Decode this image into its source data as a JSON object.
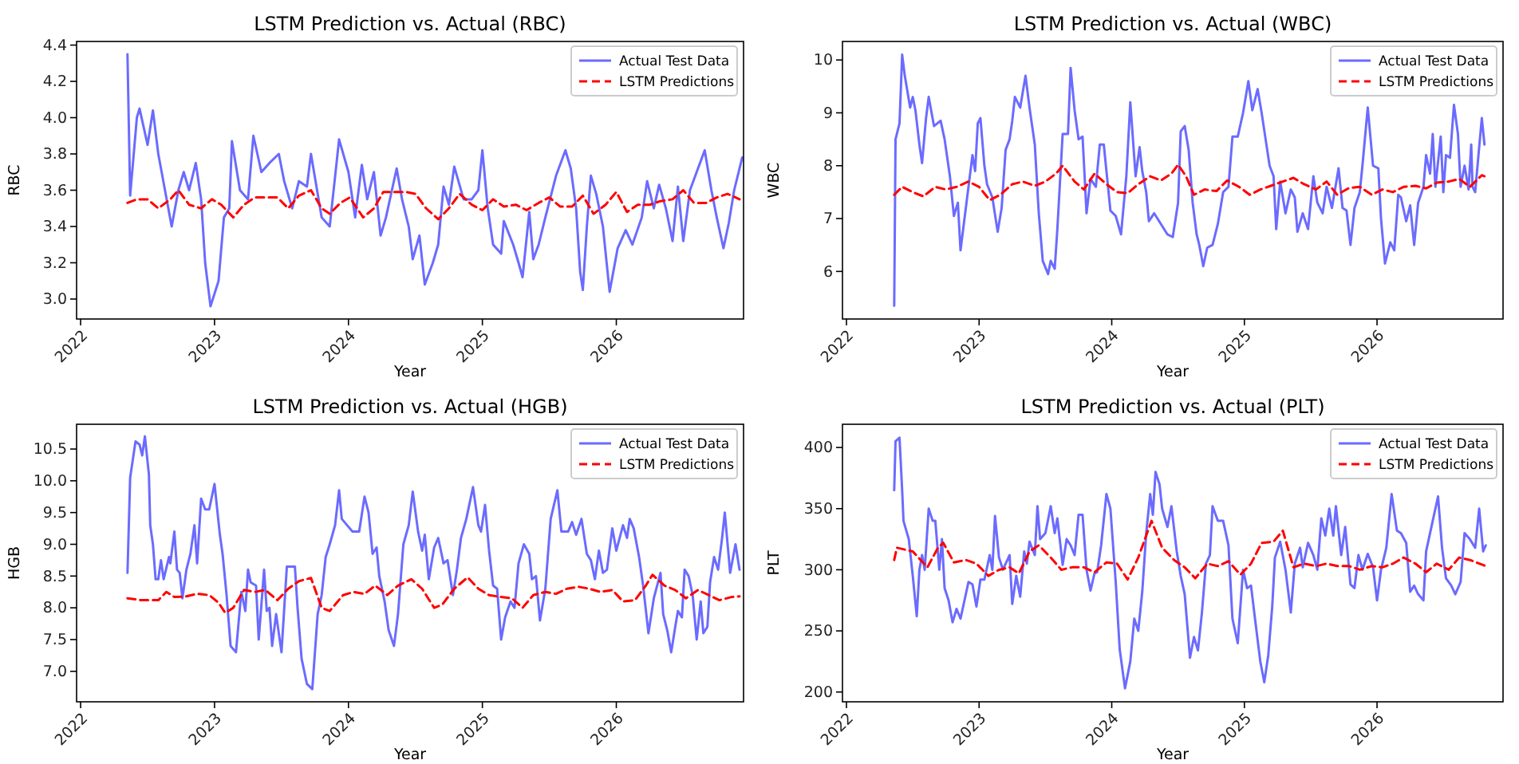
{
  "chart_data": [
    {
      "type": "line",
      "title": "LSTM Prediction vs. Actual (RBC)",
      "xlabel": "Year",
      "ylabel": "RBC",
      "legend": "top right",
      "xlim": [
        2021.97,
        2026.95
      ],
      "xticks": [
        2022,
        2023,
        2024,
        2025,
        2026
      ],
      "ylim": [
        2.89,
        4.42
      ],
      "yticks": [
        {
          "value": 3,
          "label": "3.0"
        },
        {
          "value": 3.2,
          "label": "3.2"
        },
        {
          "value": 3.4,
          "label": "3.4"
        },
        {
          "value": 3.6,
          "label": "3.6"
        },
        {
          "value": 3.8,
          "label": "3.8"
        },
        {
          "value": 4,
          "label": "4.0"
        },
        {
          "value": 4.2,
          "label": "4.2"
        },
        {
          "value": 4.4,
          "label": "4.4"
        }
      ],
      "series": [
        {
          "name": "Actual Test Data",
          "color": "#6b6bff",
          "line_style": "solid",
          "x": [
            2022.35,
            2022.37,
            2022.42,
            2022.44,
            2022.5,
            2022.54,
            2022.58,
            2022.63,
            2022.68,
            2022.73,
            2022.77,
            2022.81,
            2022.86,
            2022.9,
            2022.93,
            2022.97,
            2023.03,
            2023.07,
            2023.11,
            2023.13,
            2023.19,
            2023.25,
            2023.29,
            2023.35,
            2023.41,
            2023.48,
            2023.52,
            2023.58,
            2023.63,
            2023.69,
            2023.72,
            2023.8,
            2023.86,
            2023.93,
            2024,
            2024.05,
            2024.1,
            2024.14,
            2024.19,
            2024.24,
            2024.28,
            2024.36,
            2024.4,
            2024.45,
            2024.48,
            2024.53,
            2024.57,
            2024.63,
            2024.67,
            2024.71,
            2024.75,
            2024.79,
            2024.86,
            2024.92,
            2024.97,
            2025,
            2025.04,
            2025.08,
            2025.14,
            2025.16,
            2025.23,
            2025.27,
            2025.3,
            2025.35,
            2025.38,
            2025.42,
            2025.47,
            2025.55,
            2025.62,
            2025.66,
            2025.7,
            2025.73,
            2025.75,
            2025.78,
            2025.81,
            2025.85,
            2025.9,
            2025.95,
            2026.01,
            2026.07,
            2026.12,
            2026.19,
            2026.23,
            2026.28,
            2026.32,
            2026.37,
            2026.42,
            2026.46,
            2026.5,
            2026.55,
            2026.6,
            2026.66,
            2026.71,
            2026.75,
            2026.8,
            2026.84,
            2026.88,
            2026.94
          ],
          "values": [
            4.35,
            3.57,
            4.0,
            4.05,
            3.85,
            4.04,
            3.8,
            3.6,
            3.4,
            3.6,
            3.7,
            3.6,
            3.75,
            3.55,
            3.2,
            2.96,
            3.1,
            3.45,
            3.5,
            3.87,
            3.6,
            3.55,
            3.9,
            3.7,
            3.75,
            3.8,
            3.65,
            3.5,
            3.65,
            3.62,
            3.8,
            3.45,
            3.4,
            3.88,
            3.7,
            3.45,
            3.74,
            3.55,
            3.7,
            3.35,
            3.45,
            3.72,
            3.55,
            3.4,
            3.22,
            3.35,
            3.08,
            3.2,
            3.3,
            3.62,
            3.52,
            3.73,
            3.55,
            3.55,
            3.6,
            3.82,
            3.5,
            3.3,
            3.25,
            3.43,
            3.3,
            3.2,
            3.12,
            3.48,
            3.22,
            3.3,
            3.45,
            3.68,
            3.82,
            3.72,
            3.5,
            3.15,
            3.05,
            3.4,
            3.68,
            3.58,
            3.4,
            3.04,
            3.28,
            3.38,
            3.3,
            3.45,
            3.65,
            3.5,
            3.63,
            3.5,
            3.32,
            3.62,
            3.32,
            3.6,
            3.7,
            3.82,
            3.6,
            3.45,
            3.28,
            3.42,
            3.6,
            3.78
          ]
        },
        {
          "name": "LSTM Predictions",
          "color": "#ff0000",
          "line_style": "dashed",
          "x": [
            2022.35,
            2022.42,
            2022.5,
            2022.58,
            2022.67,
            2022.73,
            2022.81,
            2022.9,
            2022.98,
            2023.05,
            2023.14,
            2023.22,
            2023.3,
            2023.38,
            2023.47,
            2023.55,
            2023.63,
            2023.72,
            2023.8,
            2023.86,
            2023.94,
            2024.01,
            2024.11,
            2024.19,
            2024.26,
            2024.34,
            2024.43,
            2024.5,
            2024.58,
            2024.67,
            2024.75,
            2024.83,
            2024.92,
            2025,
            2025.08,
            2025.16,
            2025.25,
            2025.33,
            2025.42,
            2025.5,
            2025.58,
            2025.67,
            2025.75,
            2025.83,
            2025.92,
            2026,
            2026.08,
            2026.16,
            2026.25,
            2026.33,
            2026.42,
            2026.5,
            2026.58,
            2026.67,
            2026.75,
            2026.83,
            2026.92
          ],
          "values": [
            3.53,
            3.55,
            3.55,
            3.5,
            3.55,
            3.6,
            3.52,
            3.5,
            3.55,
            3.52,
            3.45,
            3.52,
            3.56,
            3.56,
            3.56,
            3.5,
            3.57,
            3.6,
            3.5,
            3.47,
            3.53,
            3.56,
            3.45,
            3.5,
            3.59,
            3.59,
            3.59,
            3.58,
            3.5,
            3.44,
            3.5,
            3.58,
            3.52,
            3.49,
            3.55,
            3.51,
            3.52,
            3.49,
            3.53,
            3.56,
            3.51,
            3.51,
            3.57,
            3.47,
            3.52,
            3.59,
            3.48,
            3.52,
            3.52,
            3.54,
            3.55,
            3.6,
            3.53,
            3.53,
            3.56,
            3.58,
            3.55
          ]
        }
      ]
    },
    {
      "type": "line",
      "title": "LSTM Prediction vs. Actual (WBC)",
      "xlabel": "Year",
      "ylabel": "WBC",
      "legend": "top right",
      "xlim": [
        2021.97,
        2026.95
      ],
      "xticks": [
        2022,
        2023,
        2024,
        2025,
        2026
      ],
      "ylim": [
        5.1,
        10.35
      ],
      "yticks": [
        6,
        7,
        8,
        9,
        10
      ],
      "series": [
        {
          "name": "Actual Test Data",
          "color": "#6b6bff",
          "line_style": "solid",
          "x": [
            2022.36,
            2022.37,
            2022.4,
            2022.42,
            2022.44,
            2022.48,
            2022.5,
            2022.52,
            2022.55,
            2022.57,
            2022.6,
            2022.62,
            2022.66,
            2022.71,
            2022.74,
            2022.78,
            2022.81,
            2022.84,
            2022.86,
            2022.9,
            2022.95,
            2022.97,
            2022.99,
            2023.01,
            2023.04,
            2023.06,
            2023.1,
            2023.14,
            2023.17,
            2023.2,
            2023.23,
            2023.25,
            2023.27,
            2023.31,
            2023.35,
            2023.38,
            2023.42,
            2023.45,
            2023.48,
            2023.52,
            2023.54,
            2023.57,
            2023.59,
            2023.63,
            2023.67,
            2023.69,
            2023.72,
            2023.75,
            2023.78,
            2023.81,
            2023.84,
            2023.88,
            2023.91,
            2023.94,
            2023.99,
            2024.03,
            2024.07,
            2024.11,
            2024.14,
            2024.18,
            2024.21,
            2024.23,
            2024.26,
            2024.28,
            2024.32,
            2024.37,
            2024.42,
            2024.46,
            2024.5,
            2024.52,
            2024.55,
            2024.58,
            2024.61,
            2024.64,
            2024.66,
            2024.69,
            2024.72,
            2024.76,
            2024.8,
            2024.84,
            2024.88,
            2024.91,
            2024.95,
            2024.99,
            2025.03,
            2025.06,
            2025.1,
            2025.13,
            2025.16,
            2025.19,
            2025.22,
            2025.24,
            2025.27,
            2025.31,
            2025.35,
            2025.38,
            2025.4,
            2025.44,
            2025.48,
            2025.52,
            2025.55,
            2025.59,
            2025.62,
            2025.66,
            2025.71,
            2025.74,
            2025.77,
            2025.8,
            2025.83,
            2025.87,
            2025.89,
            2025.93,
            2025.97,
            2026.01,
            2026.03,
            2026.06,
            2026.1,
            2026.13,
            2026.16,
            2026.18,
            2026.22,
            2026.25,
            2026.28,
            2026.31,
            2026.35,
            2026.37,
            2026.4,
            2026.42,
            2026.44,
            2026.48,
            2026.5,
            2026.52,
            2026.55,
            2026.58,
            2026.61,
            2026.63,
            2026.66,
            2026.69,
            2026.71,
            2026.72,
            2026.74,
            2026.77,
            2026.79,
            2026.81
          ],
          "values": [
            5.35,
            8.5,
            8.8,
            10.1,
            9.7,
            9.1,
            9.3,
            9.05,
            8.4,
            8.05,
            8.9,
            9.3,
            8.75,
            8.85,
            8.5,
            7.8,
            7.05,
            7.3,
            6.4,
            7.2,
            8.2,
            7.9,
            8.8,
            8.9,
            8.0,
            7.65,
            7.4,
            6.75,
            7.2,
            8.3,
            8.5,
            8.85,
            9.3,
            9.1,
            9.7,
            9.1,
            8.4,
            7.1,
            6.2,
            5.95,
            6.2,
            6.05,
            6.8,
            8.6,
            8.6,
            9.85,
            9.05,
            8.5,
            8.55,
            7.1,
            7.75,
            7.6,
            8.4,
            8.4,
            7.15,
            7.05,
            6.7,
            7.8,
            9.2,
            7.8,
            8.35,
            7.9,
            7.5,
            6.95,
            7.1,
            6.9,
            6.7,
            6.65,
            7.3,
            8.65,
            8.75,
            8.3,
            7.3,
            6.7,
            6.5,
            6.1,
            6.45,
            6.5,
            6.9,
            7.5,
            7.6,
            8.55,
            8.55,
            9.0,
            9.6,
            9.05,
            9.45,
            9.0,
            8.5,
            8.0,
            7.8,
            6.8,
            7.7,
            7.1,
            7.55,
            7.4,
            6.75,
            7.1,
            6.8,
            7.8,
            7.3,
            7.1,
            7.6,
            7.2,
            7.95,
            7.2,
            7.15,
            6.5,
            7.2,
            7.5,
            8.0,
            9.1,
            8.0,
            7.95,
            7.0,
            6.15,
            6.55,
            6.4,
            7.45,
            7.4,
            6.95,
            7.25,
            6.5,
            7.3,
            7.6,
            8.2,
            7.85,
            8.6,
            7.6,
            8.55,
            7.5,
            8.2,
            8.15,
            9.15,
            8.6,
            7.6,
            8.0,
            7.55,
            8.4,
            7.6,
            7.5,
            8.35,
            8.9,
            8.4
          ]
        },
        {
          "name": "LSTM Predictions",
          "color": "#ff0000",
          "line_style": "dashed",
          "x": [
            2022.36,
            2022.42,
            2022.5,
            2022.58,
            2022.67,
            2022.75,
            2022.83,
            2022.92,
            2023,
            2023.08,
            2023.16,
            2023.25,
            2023.33,
            2023.42,
            2023.5,
            2023.58,
            2023.63,
            2023.72,
            2023.79,
            2023.87,
            2023.96,
            2024.04,
            2024.12,
            2024.2,
            2024.29,
            2024.37,
            2024.45,
            2024.5,
            2024.56,
            2024.62,
            2024.7,
            2024.79,
            2024.87,
            2024.96,
            2025.04,
            2025.12,
            2025.2,
            2025.29,
            2025.37,
            2025.45,
            2025.54,
            2025.62,
            2025.7,
            2025.79,
            2025.87,
            2025.96,
            2026.04,
            2026.12,
            2026.2,
            2026.29,
            2026.37,
            2026.45,
            2026.54,
            2026.62,
            2026.7,
            2026.79,
            2026.81
          ],
          "values": [
            7.45,
            7.6,
            7.5,
            7.42,
            7.6,
            7.55,
            7.6,
            7.7,
            7.6,
            7.35,
            7.45,
            7.65,
            7.7,
            7.62,
            7.7,
            7.85,
            8.0,
            7.7,
            7.55,
            7.85,
            7.65,
            7.5,
            7.48,
            7.65,
            7.8,
            7.72,
            7.85,
            8.02,
            7.8,
            7.45,
            7.55,
            7.52,
            7.72,
            7.6,
            7.45,
            7.55,
            7.62,
            7.7,
            7.77,
            7.65,
            7.55,
            7.7,
            7.45,
            7.58,
            7.6,
            7.45,
            7.55,
            7.5,
            7.6,
            7.62,
            7.57,
            7.68,
            7.7,
            7.75,
            7.6,
            7.82,
            7.8
          ]
        }
      ]
    },
    {
      "type": "line",
      "title": "LSTM Prediction vs. Actual (HGB)",
      "xlabel": "Year",
      "ylabel": "HGB",
      "legend": "top right",
      "xlim": [
        2021.97,
        2026.95
      ],
      "xticks": [
        2022,
        2023,
        2024,
        2025,
        2026
      ],
      "ylim": [
        6.52,
        10.89
      ],
      "yticks": [
        {
          "value": 7,
          "label": "7.0"
        },
        {
          "value": 7.5,
          "label": "7.5"
        },
        {
          "value": 8,
          "label": "8.0"
        },
        {
          "value": 8.5,
          "label": "8.5"
        },
        {
          "value": 9,
          "label": "9.0"
        },
        {
          "value": 9.5,
          "label": "9.5"
        },
        {
          "value": 10,
          "label": "10.0"
        },
        {
          "value": 10.5,
          "label": "10.5"
        }
      ],
      "series": [
        {
          "name": "Actual Test Data",
          "color": "#6b6bff",
          "line_style": "solid",
          "x": [
            2022.35,
            2022.37,
            2022.41,
            2022.44,
            2022.46,
            2022.48,
            2022.51,
            2022.52,
            2022.54,
            2022.56,
            2022.58,
            2022.6,
            2022.62,
            2022.66,
            2022.67,
            2022.7,
            2022.72,
            2022.74,
            2022.76,
            2022.79,
            2022.82,
            2022.85,
            2022.87,
            2022.9,
            2022.93,
            2022.96,
            2023,
            2023.04,
            2023.06,
            2023.09,
            2023.12,
            2023.16,
            2023.2,
            2023.23,
            2023.25,
            2023.27,
            2023.31,
            2023.33,
            2023.37,
            2023.39,
            2023.41,
            2023.43,
            2023.46,
            2023.5,
            2023.54,
            2023.6,
            2023.62,
            2023.65,
            2023.69,
            2023.73,
            2023.77,
            2023.8,
            2023.83,
            2023.86,
            2023.9,
            2023.93,
            2023.95,
            2023.99,
            2024.03,
            2024.08,
            2024.12,
            2024.15,
            2024.18,
            2024.21,
            2024.23,
            2024.27,
            2024.3,
            2024.34,
            2024.37,
            2024.41,
            2024.45,
            2024.48,
            2024.52,
            2024.55,
            2024.57,
            2024.6,
            2024.64,
            2024.67,
            2024.71,
            2024.74,
            2024.78,
            2024.81,
            2024.84,
            2024.88,
            2024.93,
            2024.97,
            2024.99,
            2025.02,
            2025.05,
            2025.08,
            2025.11,
            2025.14,
            2025.17,
            2025.21,
            2025.24,
            2025.27,
            2025.31,
            2025.35,
            2025.37,
            2025.4,
            2025.43,
            2025.47,
            2025.51,
            2025.56,
            2025.59,
            2025.64,
            2025.67,
            2025.7,
            2025.74,
            2025.78,
            2025.81,
            2025.84,
            2025.87,
            2025.9,
            2025.93,
            2025.97,
            2026,
            2026.05,
            2026.08,
            2026.1,
            2026.13,
            2026.17,
            2026.2,
            2026.24,
            2026.28,
            2026.33,
            2026.35,
            2026.38,
            2026.41,
            2026.44,
            2026.46,
            2026.49,
            2026.51,
            2026.54,
            2026.57,
            2026.6,
            2026.63,
            2026.65,
            2026.68,
            2026.7,
            2026.73,
            2026.76,
            2026.79,
            2026.81,
            2026.85,
            2026.89,
            2026.92
          ],
          "values": [
            8.55,
            10.05,
            10.62,
            10.57,
            10.4,
            10.7,
            10.1,
            9.3,
            9.0,
            8.45,
            8.45,
            8.75,
            8.45,
            8.8,
            8.7,
            9.2,
            8.6,
            8.55,
            8.15,
            8.6,
            8.85,
            9.3,
            8.7,
            9.72,
            9.55,
            9.55,
            9.95,
            9.15,
            8.85,
            8.2,
            7.4,
            7.3,
            8.25,
            7.95,
            8.6,
            8.4,
            8.35,
            7.5,
            8.6,
            7.95,
            8.0,
            7.4,
            7.9,
            7.3,
            8.65,
            8.65,
            8.0,
            7.2,
            6.8,
            6.72,
            7.9,
            8.2,
            8.8,
            9.0,
            9.3,
            9.85,
            9.4,
            9.3,
            9.2,
            9.2,
            9.75,
            9.5,
            8.85,
            8.95,
            8.5,
            8.1,
            7.65,
            7.4,
            7.9,
            9.0,
            9.3,
            9.83,
            9.2,
            8.9,
            9.15,
            8.45,
            8.95,
            9.1,
            8.7,
            8.75,
            8.2,
            8.6,
            9.1,
            9.4,
            9.9,
            9.3,
            9.2,
            9.62,
            8.9,
            8.35,
            8.3,
            7.5,
            7.85,
            8.1,
            8.0,
            8.7,
            9.0,
            8.85,
            8.45,
            8.5,
            7.8,
            8.3,
            9.4,
            9.85,
            9.2,
            9.2,
            9.35,
            9.15,
            9.4,
            8.85,
            8.75,
            8.45,
            8.9,
            8.55,
            8.6,
            9.25,
            8.9,
            9.3,
            9.1,
            9.4,
            9.25,
            8.8,
            8.35,
            7.6,
            8.15,
            8.55,
            7.9,
            7.65,
            7.3,
            7.7,
            7.95,
            7.85,
            8.6,
            8.5,
            8.2,
            7.5,
            8.1,
            7.6,
            7.7,
            8.4,
            8.8,
            8.6,
            9.1,
            9.5,
            8.55,
            9.0,
            8.6
          ]
        },
        {
          "name": "LSTM Predictions",
          "color": "#ff0000",
          "line_style": "dashed",
          "x": [
            2022.35,
            2022.45,
            2022.58,
            2022.64,
            2022.7,
            2022.79,
            2022.87,
            2022.96,
            2023.03,
            2023.08,
            2023.14,
            2023.22,
            2023.3,
            2023.38,
            2023.47,
            2023.55,
            2023.63,
            2023.72,
            2023.8,
            2023.86,
            2023.96,
            2024.04,
            2024.12,
            2024.2,
            2024.29,
            2024.37,
            2024.47,
            2024.55,
            2024.64,
            2024.7,
            2024.79,
            2024.89,
            2024.97,
            2025.05,
            2025.14,
            2025.22,
            2025.3,
            2025.38,
            2025.47,
            2025.55,
            2025.63,
            2025.72,
            2025.8,
            2025.88,
            2025.97,
            2026.05,
            2026.14,
            2026.22,
            2026.27,
            2026.36,
            2026.44,
            2026.52,
            2026.61,
            2026.69,
            2026.77,
            2026.86,
            2026.92
          ],
          "values": [
            8.15,
            8.12,
            8.12,
            8.25,
            8.17,
            8.18,
            8.22,
            8.2,
            8.08,
            7.92,
            8.0,
            8.28,
            8.25,
            8.28,
            8.12,
            8.3,
            8.42,
            8.47,
            8.0,
            7.95,
            8.2,
            8.25,
            8.22,
            8.35,
            8.2,
            8.35,
            8.45,
            8.3,
            8.0,
            8.05,
            8.3,
            8.48,
            8.3,
            8.2,
            8.17,
            8.15,
            8.0,
            8.2,
            8.25,
            8.22,
            8.3,
            8.33,
            8.3,
            8.25,
            8.28,
            8.1,
            8.12,
            8.35,
            8.52,
            8.35,
            8.28,
            8.15,
            8.28,
            8.2,
            8.12,
            8.17,
            8.18
          ]
        }
      ]
    },
    {
      "type": "line",
      "title": "LSTM Prediction vs. Actual (PLT)",
      "xlabel": "Year",
      "ylabel": "PLT",
      "legend": "top right",
      "xlim": [
        2021.97,
        2026.95
      ],
      "xticks": [
        2022,
        2023,
        2024,
        2025,
        2026
      ],
      "ylim": [
        192,
        419
      ],
      "yticks": [
        200,
        250,
        300,
        350,
        400
      ],
      "series": [
        {
          "name": "Actual Test Data",
          "color": "#6b6bff",
          "line_style": "solid",
          "x": [
            2022.36,
            2022.37,
            2022.4,
            2022.42,
            2022.43,
            2022.47,
            2022.5,
            2022.53,
            2022.55,
            2022.57,
            2022.59,
            2022.62,
            2022.65,
            2022.67,
            2022.7,
            2022.72,
            2022.74,
            2022.77,
            2022.8,
            2022.83,
            2022.86,
            2022.89,
            2022.92,
            2022.95,
            2022.98,
            2023.01,
            2023.04,
            2023.08,
            2023.1,
            2023.12,
            2023.15,
            2023.18,
            2023.2,
            2023.23,
            2023.25,
            2023.28,
            2023.31,
            2023.34,
            2023.36,
            2023.38,
            2023.42,
            2023.44,
            2023.46,
            2023.5,
            2023.54,
            2023.57,
            2023.59,
            2023.63,
            2023.66,
            2023.69,
            2023.72,
            2023.75,
            2023.78,
            2023.81,
            2023.84,
            2023.87,
            2023.89,
            2023.92,
            2023.96,
            2023.99,
            2024.03,
            2024.06,
            2024.1,
            2024.14,
            2024.17,
            2024.2,
            2024.23,
            2024.26,
            2024.29,
            2024.31,
            2024.33,
            2024.36,
            2024.38,
            2024.42,
            2024.45,
            2024.49,
            2024.52,
            2024.55,
            2024.59,
            2024.62,
            2024.65,
            2024.68,
            2024.71,
            2024.74,
            2024.76,
            2024.8,
            2024.84,
            2024.88,
            2024.91,
            2024.95,
            2024.99,
            2025.02,
            2025.05,
            2025.08,
            2025.12,
            2025.15,
            2025.18,
            2025.21,
            2025.23,
            2025.27,
            2025.31,
            2025.35,
            2025.38,
            2025.42,
            2025.44,
            2025.48,
            2025.52,
            2025.55,
            2025.58,
            2025.61,
            2025.64,
            2025.67,
            2025.69,
            2025.73,
            2025.76,
            2025.8,
            2025.83,
            2025.86,
            2025.89,
            2025.93,
            2025.97,
            2026,
            2026.03,
            2026.07,
            2026.11,
            2026.15,
            2026.18,
            2026.22,
            2026.25,
            2026.28,
            2026.31,
            2026.35,
            2026.37,
            2026.4,
            2026.46,
            2026.49,
            2026.52,
            2026.56,
            2026.59,
            2026.63,
            2026.66,
            2026.7,
            2026.74,
            2026.77,
            2026.8,
            2026.82
          ],
          "values": [
            365,
            405,
            408,
            365,
            340,
            325,
            295,
            262,
            300,
            312,
            300,
            350,
            340,
            340,
            300,
            325,
            285,
            275,
            257,
            268,
            260,
            275,
            290,
            288,
            270,
            292,
            292,
            312,
            300,
            344,
            310,
            300,
            305,
            312,
            272,
            295,
            278,
            315,
            305,
            323,
            312,
            352,
            325,
            330,
            352,
            330,
            342,
            304,
            325,
            320,
            312,
            345,
            345,
            300,
            283,
            297,
            298,
            320,
            362,
            350,
            290,
            235,
            203,
            225,
            260,
            250,
            282,
            330,
            362,
            345,
            380,
            370,
            350,
            335,
            352,
            315,
            295,
            280,
            228,
            245,
            234,
            265,
            305,
            312,
            352,
            340,
            340,
            320,
            260,
            240,
            300,
            285,
            287,
            260,
            225,
            208,
            230,
            270,
            310,
            323,
            300,
            265,
            305,
            318,
            302,
            322,
            312,
            300,
            342,
            328,
            350,
            328,
            352,
            312,
            335,
            288,
            285,
            312,
            300,
            313,
            302,
            275,
            300,
            318,
            362,
            332,
            330,
            322,
            282,
            287,
            280,
            275,
            315,
            330,
            360,
            318,
            293,
            287,
            280,
            290,
            330,
            325,
            318,
            350,
            315,
            320
          ]
        },
        {
          "name": "LSTM Predictions",
          "color": "#ff0000",
          "line_style": "dashed",
          "x": [
            2022.36,
            2022.38,
            2022.5,
            2022.61,
            2022.69,
            2022.73,
            2022.81,
            2022.9,
            2022.98,
            2023.07,
            2023.15,
            2023.23,
            2023.3,
            2023.38,
            2023.45,
            2023.54,
            2023.62,
            2023.7,
            2023.79,
            2023.87,
            2023.96,
            2024.04,
            2024.12,
            2024.2,
            2024.3,
            2024.38,
            2024.47,
            2024.55,
            2024.63,
            2024.72,
            2024.8,
            2024.88,
            2024.97,
            2025.05,
            2025.13,
            2025.22,
            2025.29,
            2025.37,
            2025.45,
            2025.54,
            2025.62,
            2025.7,
            2025.79,
            2025.87,
            2025.96,
            2026.04,
            2026.12,
            2026.2,
            2026.29,
            2026.37,
            2026.45,
            2026.54,
            2026.62,
            2026.7,
            2026.82
          ],
          "values": [
            308,
            318,
            315,
            302,
            318,
            322,
            306,
            308,
            305,
            295,
            300,
            302,
            297,
            315,
            320,
            310,
            300,
            302,
            302,
            298,
            306,
            305,
            292,
            310,
            340,
            318,
            308,
            302,
            293,
            305,
            303,
            307,
            296,
            305,
            322,
            323,
            332,
            302,
            305,
            303,
            305,
            303,
            303,
            300,
            303,
            302,
            305,
            310,
            305,
            298,
            305,
            300,
            310,
            308,
            303
          ]
        }
      ]
    }
  ]
}
